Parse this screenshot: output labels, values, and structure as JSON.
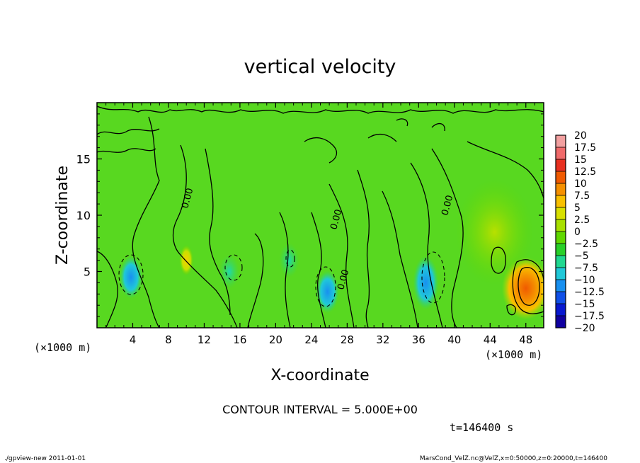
{
  "chart_data": {
    "type": "heatmap",
    "title": "vertical velocity",
    "xlabel": "X-coordinate",
    "ylabel": "Z-coordinate",
    "x_unit_left": "(×1000 m)",
    "x_unit_right": "(×1000 m)",
    "xlim": [
      0,
      50
    ],
    "ylim": [
      0,
      20
    ],
    "xticks": [
      "4",
      "8",
      "12",
      "16",
      "20",
      "24",
      "28",
      "32",
      "36",
      "40",
      "44",
      "48"
    ],
    "yticks": [
      "5",
      "10",
      "15"
    ],
    "colorbar": {
      "labels": [
        "20",
        "17.5",
        "15",
        "12.5",
        "10",
        "7.5",
        "5",
        "2.5",
        "0",
        "−2.5",
        "−5",
        "−7.5",
        "−10",
        "−12.5",
        "−15",
        "−17.5",
        "−20"
      ],
      "colors": [
        "#f2a0a0",
        "#f06a6a",
        "#e83020",
        "#f05a00",
        "#f59000",
        "#f8c000",
        "#d8e000",
        "#a8e000",
        "#60d800",
        "#28d028",
        "#20d890",
        "#20c8d8",
        "#1890f0",
        "#1050e8",
        "#0818d0",
        "#1000a0",
        "#7000b0"
      ]
    },
    "contour_labels": [
      "0.00",
      "0.00",
      "0.00",
      "0.00"
    ],
    "contour_interval_text": "CONTOUR INTERVAL = 5.000E+00",
    "time_text": "t=146400 s",
    "features": [
      {
        "x": 3.8,
        "z": 4.5,
        "value": -7.5
      },
      {
        "x": 10.0,
        "z": 6.0,
        "value": 7.5
      },
      {
        "x": 14.8,
        "z": 5.0,
        "value": -5
      },
      {
        "x": 21.5,
        "z": 6.0,
        "value": -5
      },
      {
        "x": 25.8,
        "z": 3.2,
        "value": -7.5
      },
      {
        "x": 36.8,
        "z": 4.0,
        "value": -10
      },
      {
        "x": 48.0,
        "z": 3.5,
        "value": 12.5
      },
      {
        "x": 44.5,
        "z": 8.5,
        "value": 5
      }
    ]
  },
  "footer": {
    "left": "./gpview-new   2011-01-01",
    "right": "MarsCond_VelZ.nc@VelZ,x=0:50000,z=0:20000,t=146400"
  }
}
